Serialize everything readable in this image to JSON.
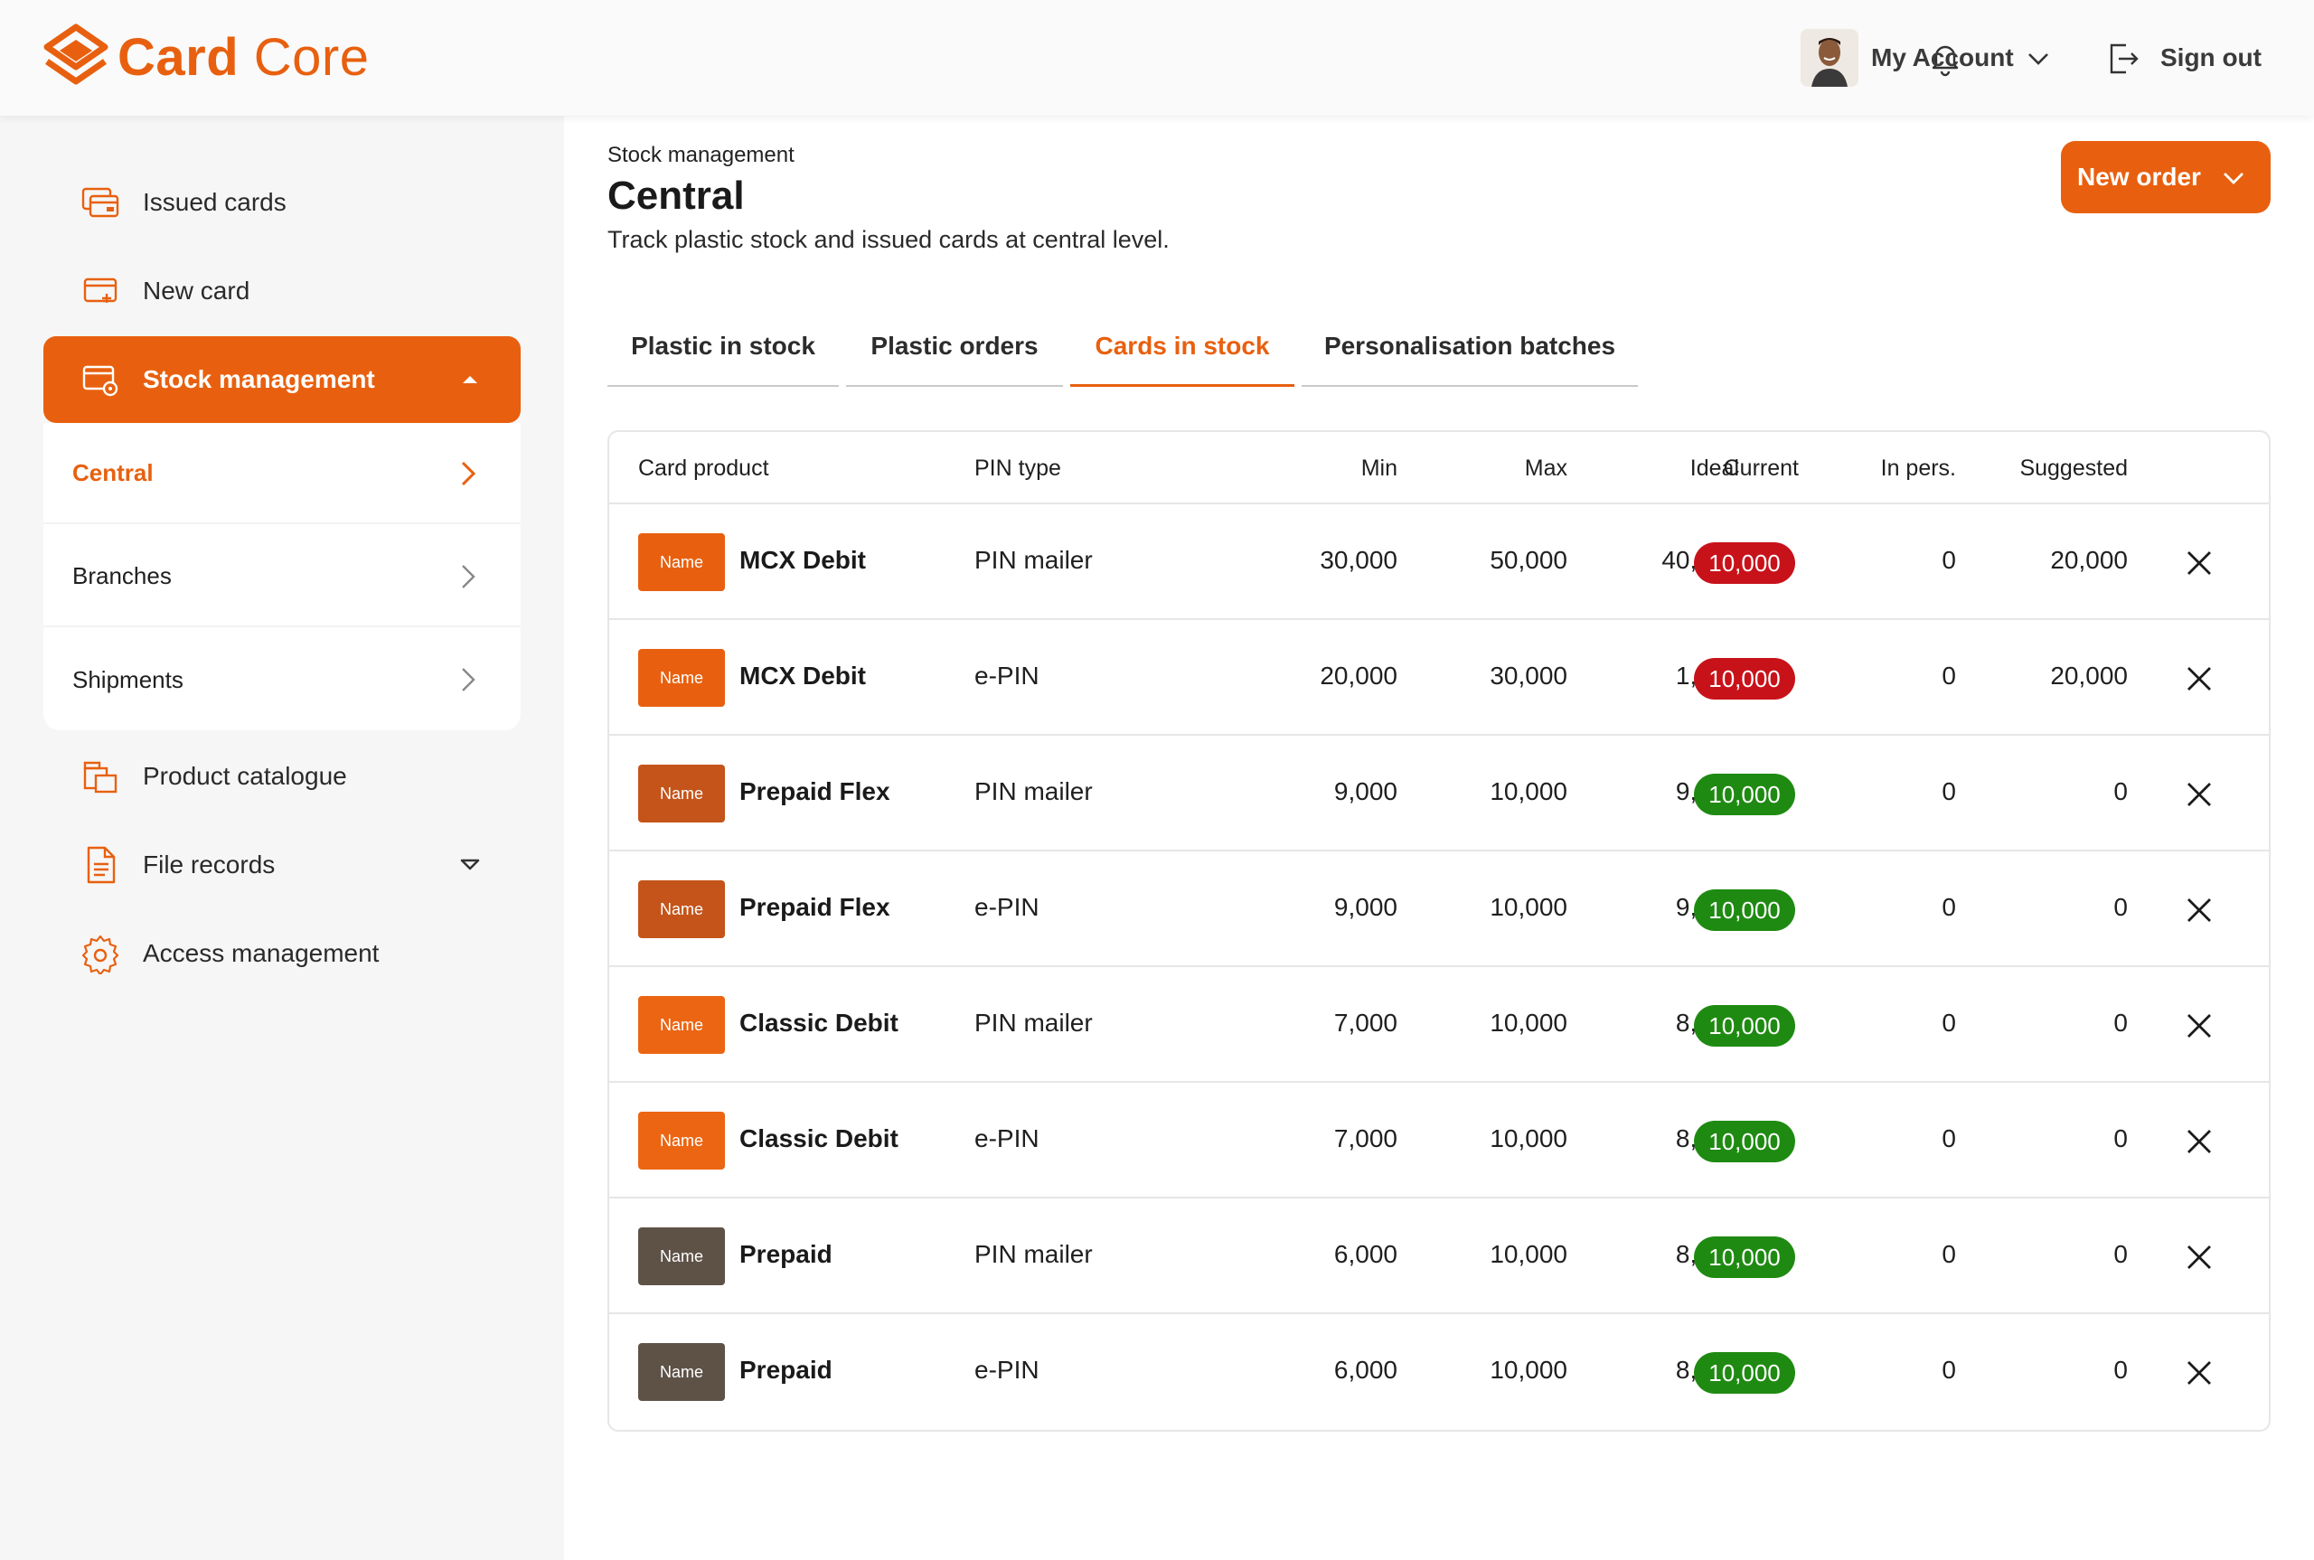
{
  "header": {
    "logo_main": "Card",
    "logo_rest": " Core",
    "account_label": "My Account",
    "signout_label": "Sign out",
    "brand_color": "#e8600f"
  },
  "sidebar": {
    "items": [
      {
        "label": "Issued cards",
        "icon": "cards-stack-icon"
      },
      {
        "label": "New card",
        "icon": "new-card-icon"
      },
      {
        "label": "Stock management",
        "icon": "stock-card-icon",
        "active": true
      },
      {
        "label": "Product catalogue",
        "icon": "catalogue-icon"
      },
      {
        "label": "File records",
        "icon": "file-icon"
      },
      {
        "label": "Access management",
        "icon": "gear-icon"
      }
    ],
    "sub_items": [
      {
        "label": "Central",
        "active": true
      },
      {
        "label": "Branches"
      },
      {
        "label": "Shipments"
      }
    ]
  },
  "main": {
    "breadcrumb": "Stock management",
    "title": "Central",
    "subtitle": "Track plastic stock and issued cards at central level.",
    "new_order_label": "New order",
    "tabs": [
      {
        "label": "Plastic in stock"
      },
      {
        "label": "Plastic orders"
      },
      {
        "label": "Cards in stock",
        "active": true
      },
      {
        "label": "Personalisation batches"
      }
    ]
  },
  "table": {
    "headers": [
      "Card product",
      "PIN type",
      "Min",
      "Max",
      "Ideal",
      "Current",
      "In pers.",
      "Suggested"
    ],
    "thumb_label": "Name",
    "rows": [
      {
        "product": "MCX Debit",
        "pin": "PIN mailer",
        "min": "30,000",
        "max": "50,000",
        "ideal": "40,000",
        "current": "10,000",
        "status": "low",
        "in_pers": "0",
        "suggested": "20,000",
        "thumb_color": "#e8600f"
      },
      {
        "product": "MCX Debit",
        "pin": "e-PIN",
        "min": "20,000",
        "max": "30,000",
        "ideal": "1,000",
        "current": "10,000",
        "status": "low",
        "in_pers": "0",
        "suggested": "20,000",
        "thumb_color": "#e8600f"
      },
      {
        "product": "Prepaid Flex",
        "pin": "PIN mailer",
        "min": "9,000",
        "max": "10,000",
        "ideal": "9,500",
        "current": "10,000",
        "status": "ok",
        "in_pers": "0",
        "suggested": "0",
        "thumb_color": "#c4541a"
      },
      {
        "product": "Prepaid Flex",
        "pin": "e-PIN",
        "min": "9,000",
        "max": "10,000",
        "ideal": "9,500",
        "current": "10,000",
        "status": "ok",
        "in_pers": "0",
        "suggested": "0",
        "thumb_color": "#c4541a"
      },
      {
        "product": "Classic Debit",
        "pin": "PIN mailer",
        "min": "7,000",
        "max": "10,000",
        "ideal": "8,000",
        "current": "10,000",
        "status": "ok",
        "in_pers": "0",
        "suggested": "0",
        "thumb_color": "#ec6512"
      },
      {
        "product": "Classic Debit",
        "pin": "e-PIN",
        "min": "7,000",
        "max": "10,000",
        "ideal": "8,000",
        "current": "10,000",
        "status": "ok",
        "in_pers": "0",
        "suggested": "0",
        "thumb_color": "#ec6512"
      },
      {
        "product": "Prepaid",
        "pin": "PIN mailer",
        "min": "6,000",
        "max": "10,000",
        "ideal": "8,000",
        "current": "10,000",
        "status": "ok",
        "in_pers": "0",
        "suggested": "0",
        "thumb_color": "#5e5247"
      },
      {
        "product": "Prepaid",
        "pin": "e-PIN",
        "min": "6,000",
        "max": "10,000",
        "ideal": "8,000",
        "current": "10,000",
        "status": "ok",
        "in_pers": "0",
        "suggested": "0",
        "thumb_color": "#5e5247"
      }
    ],
    "status_colors": {
      "low": "#c8121a",
      "ok": "#1f8a12"
    }
  }
}
